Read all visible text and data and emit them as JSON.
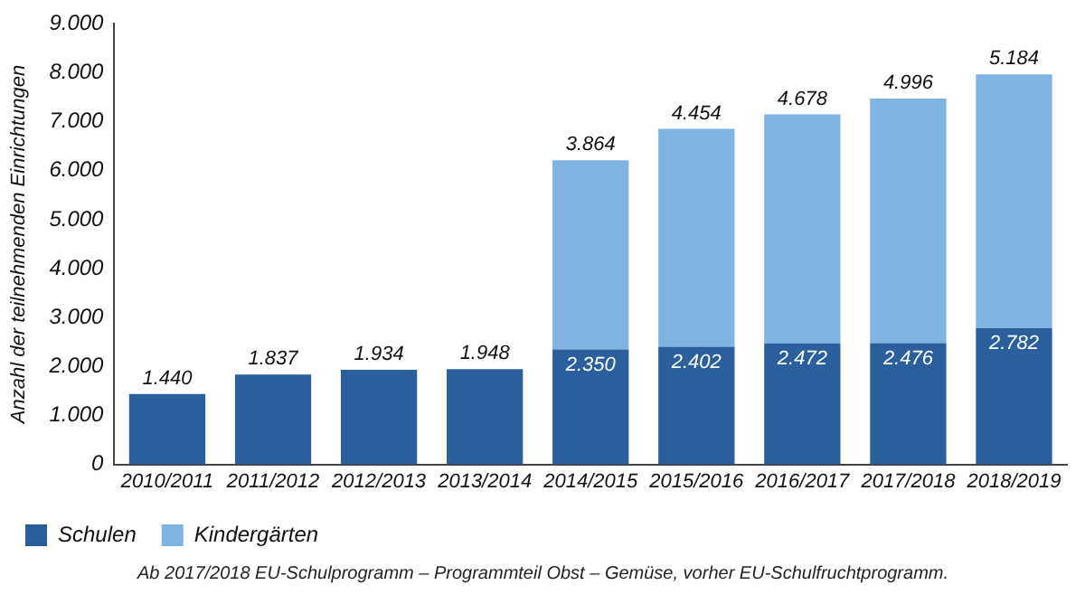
{
  "chart_data": {
    "type": "bar",
    "stacked": true,
    "ylabel": "Anzahl der teilnehmenden Einrichtungen",
    "categories": [
      "2010/2011",
      "2011/2012",
      "2012/2013",
      "2013/2014",
      "2014/2015",
      "2015/2016",
      "2016/2017",
      "2017/2018",
      "2018/2019"
    ],
    "series": [
      {
        "name": "Schulen",
        "color": "#2b5e9c",
        "values": [
          1440,
          1837,
          1934,
          1948,
          2350,
          2402,
          2472,
          2476,
          2782
        ],
        "value_labels": [
          "1.440",
          "1.837",
          "1.934",
          "1.948",
          "2.350",
          "2.402",
          "2.472",
          "2.476",
          "2.782"
        ]
      },
      {
        "name": "Kindergärten",
        "color": "#7eb3e2",
        "values": [
          null,
          null,
          null,
          null,
          3864,
          4454,
          4678,
          4996,
          5184
        ],
        "value_labels": [
          null,
          null,
          null,
          null,
          "3.864",
          "4.454",
          "4.678",
          "4.996",
          "5.184"
        ]
      }
    ],
    "ylim": [
      0,
      9000
    ],
    "yticks": [
      0,
      {
        "value": 1000,
        "label": "1.000"
      },
      {
        "value": 2000,
        "label": "2.000"
      },
      {
        "value": 3000,
        "label": "3.000"
      },
      {
        "value": 4000,
        "label": "4.000"
      },
      {
        "value": 5000,
        "label": "5.000"
      },
      {
        "value": 6000,
        "label": "6.000"
      },
      {
        "value": 7000,
        "label": "7.000"
      },
      {
        "value": 8000,
        "label": "8.000"
      },
      {
        "value": 9000,
        "label": "9.000"
      }
    ],
    "grid": false,
    "legend": "bottom left",
    "annotations": [
      "Ab 2017/2018 EU-Schulprogramm – Programmteil Obst – Gemüse, vorher EU-Schulfruchtprogramm."
    ]
  }
}
